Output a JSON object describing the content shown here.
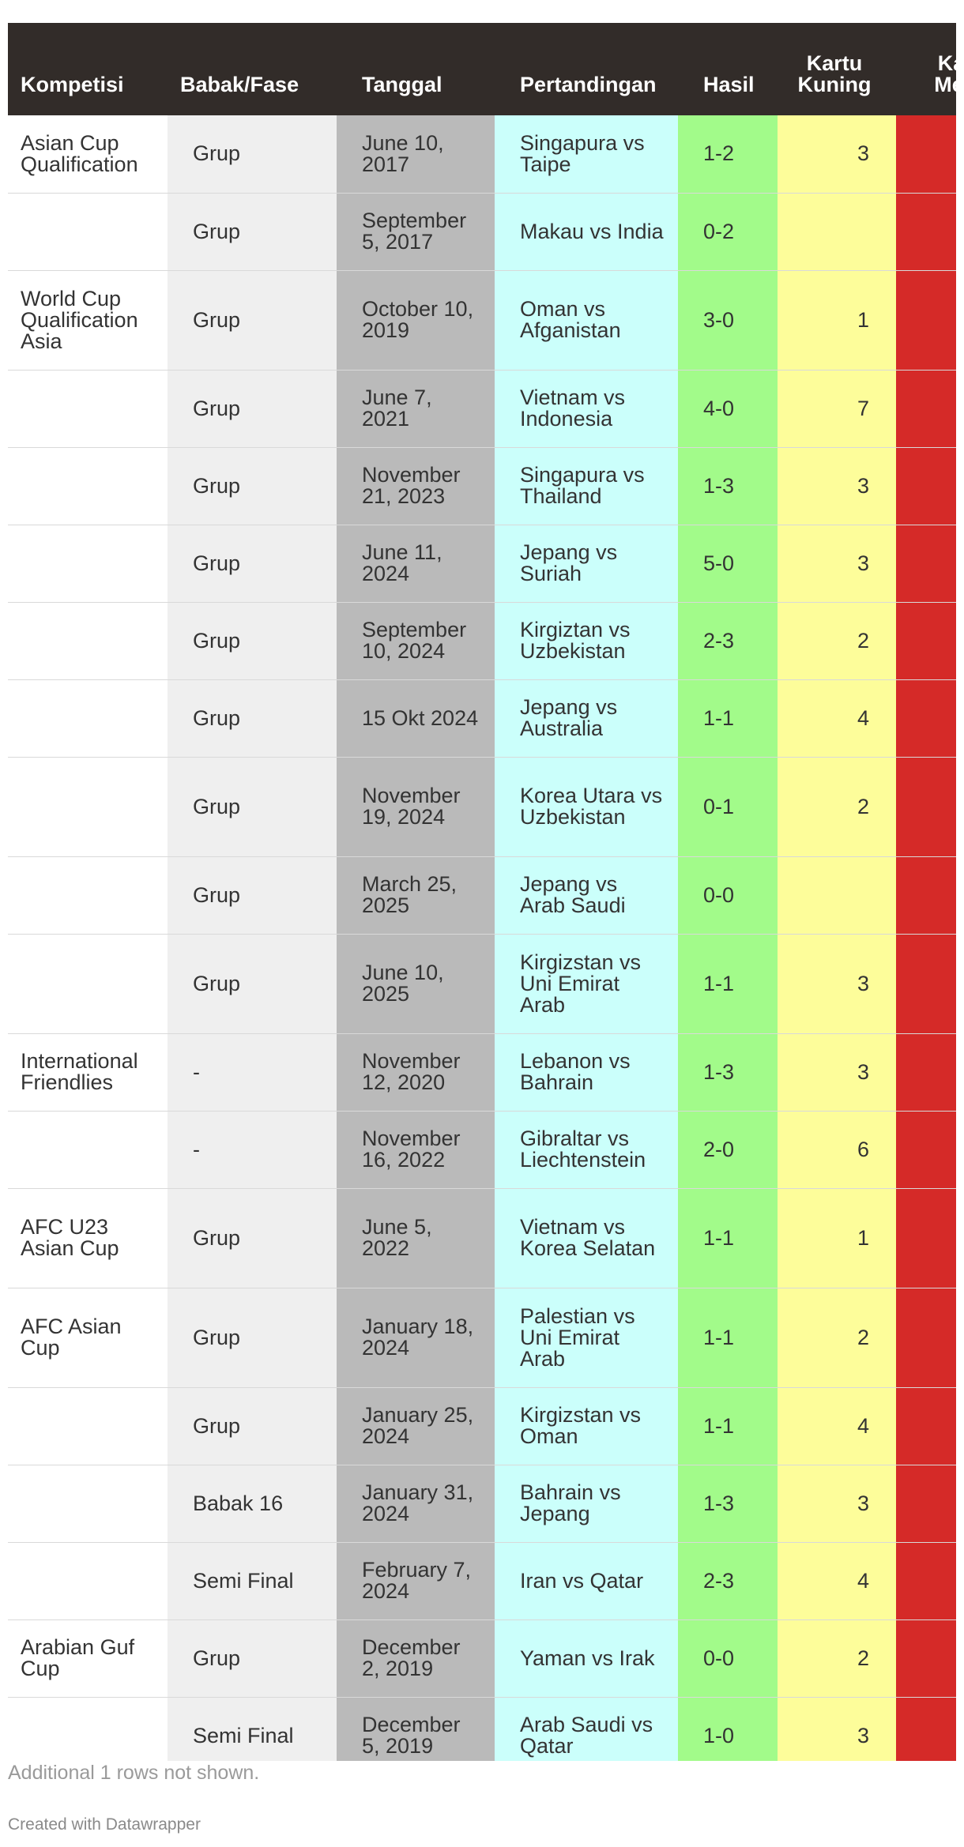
{
  "chart_data": {
    "type": "table",
    "columns": [
      "Kompetisi",
      "Babak/Fase",
      "Tanggal",
      "Pertandingan",
      "Hasil",
      "Kartu Kuning",
      "Kartu Merah"
    ],
    "column_colors": [
      "#ffffff",
      "#efefef",
      "#bababa",
      "#cbfffb",
      "#a2fb8a",
      "#fdfd9a",
      "#d52a28"
    ],
    "header_color": "#322c29",
    "rows": [
      [
        "Asian Cup Qualification",
        "Grup",
        "June 10, 2017",
        "Singapura vs Taipe",
        "1-2",
        "3",
        ""
      ],
      [
        "",
        "Grup",
        "September 5, 2017",
        "Makau vs India",
        "0-2",
        "",
        ""
      ],
      [
        "World Cup Qualification Asia",
        "Grup",
        "October 10, 2019",
        "Oman vs Afganistan",
        "3-0",
        "1",
        ""
      ],
      [
        "",
        "Grup",
        "June 7, 2021",
        "Vietnam vs Indonesia",
        "4-0",
        "7",
        ""
      ],
      [
        "",
        "Grup",
        "November 21, 2023",
        "Singapura vs Thailand",
        "1-3",
        "3",
        ""
      ],
      [
        "",
        "Grup",
        "June 11, 2024",
        "Jepang vs Suriah",
        "5-0",
        "3",
        ""
      ],
      [
        "",
        "Grup",
        "September 10, 2024",
        "Kirgiztan vs Uzbekistan",
        "2-3",
        "2",
        ""
      ],
      [
        "",
        "Grup",
        "15 Okt 2024",
        "Jepang vs Australia",
        "1-1",
        "4",
        ""
      ],
      [
        "",
        "Grup",
        "November 19, 2024",
        "Korea Utara vs Uzbekistan",
        "0-1",
        "2",
        ""
      ],
      [
        "",
        "Grup",
        "March 25, 2025",
        "Jepang vs Arab Saudi",
        "0-0",
        "",
        ""
      ],
      [
        "",
        "Grup",
        "June 10, 2025",
        "Kirgizstan vs Uni Emirat Arab",
        "1-1",
        "3",
        ""
      ],
      [
        "International Friendlies",
        "-",
        "November 12, 2020",
        "Lebanon vs Bahrain",
        "1-3",
        "3",
        ""
      ],
      [
        "",
        "-",
        "November 16, 2022",
        "Gibraltar vs Liechtenstein",
        "2-0",
        "6",
        ""
      ],
      [
        "AFC U23 Asian Cup",
        "Grup",
        "June 5, 2022",
        "Vietnam vs Korea Selatan",
        "1-1",
        "1",
        ""
      ],
      [
        "AFC Asian Cup",
        "Grup",
        "January 18, 2024",
        "Palestian vs Uni Emirat Arab",
        "1-1",
        "2",
        ""
      ],
      [
        "",
        "Grup",
        "January 25, 2024",
        "Kirgizstan vs Oman",
        "1-1",
        "4",
        ""
      ],
      [
        "",
        "Babak 16",
        "January 31, 2024",
        "Bahrain vs Jepang",
        "1-3",
        "3",
        ""
      ],
      [
        "",
        "Semi Final",
        "February 7, 2024",
        "Iran vs Qatar",
        "2-3",
        "4",
        ""
      ],
      [
        "Arabian Guf Cup",
        "Grup",
        "December 2, 2019",
        "Yaman vs Irak",
        "0-0",
        "2",
        ""
      ],
      [
        "",
        "Semi Final",
        "December 5, 2019",
        "Arab Saudi vs Qatar",
        "1-0",
        "3",
        ""
      ]
    ]
  },
  "note": "Additional 1 rows not shown.",
  "credit": "Created with Datawrapper"
}
